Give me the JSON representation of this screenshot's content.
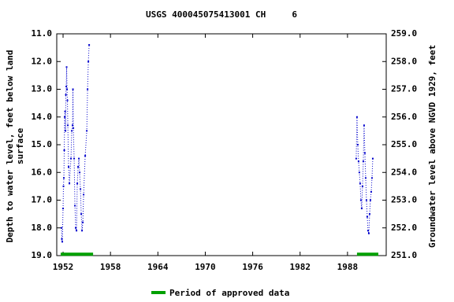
{
  "chart_data": {
    "type": "line",
    "title": "USGS 400045075413001 CH     6",
    "y_label": [
      "Depth to water level, feet below land",
      "surface"
    ],
    "y2_label": "Groundwater level above NGVD 1929, feet",
    "x": [
      1951.8,
      1951.85,
      1951.9,
      1952.0,
      1952.05,
      1952.1,
      1952.15,
      1952.2,
      1952.25,
      1952.3,
      1952.35,
      1952.4,
      1952.45,
      1952.5,
      1952.55,
      1952.6,
      1952.7,
      1952.8,
      1953.0,
      1953.1,
      1953.2,
      1953.25,
      1953.3,
      1953.4,
      1953.5,
      1953.6,
      1953.7,
      1953.8,
      1953.9,
      1954.0,
      1954.1,
      1954.2,
      1954.3,
      1954.4,
      1954.5,
      1954.6,
      1954.8,
      1955.0,
      1955.1,
      1955.2,
      1955.3,
      1970,
      1989.1,
      1989.2,
      1989.3,
      1989.4,
      1989.5,
      1989.6,
      1989.7,
      1989.8,
      1989.9,
      1990.0,
      1990.1,
      1990.2,
      1990.3,
      1990.4,
      1990.5,
      1990.6,
      1990.7,
      1990.8,
      1990.9,
      1991.0,
      1991.1,
      1991.2
    ],
    "series": [
      {
        "color": "#0000cc",
        "values": [
          18.0,
          18.4,
          18.5,
          17.3,
          16.5,
          16.2,
          15.2,
          14.0,
          13.8,
          14.5,
          13.2,
          12.9,
          12.2,
          13.0,
          13.4,
          14.3,
          15.8,
          16.4,
          15.5,
          14.5,
          14.3,
          13.0,
          14.4,
          15.5,
          17.2,
          18.0,
          18.1,
          16.4,
          15.8,
          15.5,
          16.0,
          16.6,
          17.5,
          18.1,
          17.8,
          16.8,
          15.4,
          14.5,
          13.0,
          12.0,
          11.4,
          null,
          15.5,
          14.0,
          15.0,
          15.6,
          16.0,
          16.4,
          17.0,
          17.3,
          16.5,
          15.6,
          14.3,
          15.3,
          16.2,
          17.0,
          17.6,
          18.1,
          18.2,
          17.5,
          17.0,
          16.7,
          16.2,
          15.5
        ]
      }
    ],
    "approved": {
      "name": "Period of approved data",
      "color": "#00a000",
      "periods": [
        [
          1951.7,
          1955.8
        ],
        [
          1989.2,
          1991.9
        ]
      ],
      "depth": 18.95
    },
    "xlim": [
      1951.2,
      1992.9
    ],
    "xticks": [
      1952,
      1958,
      1964,
      1970,
      1976,
      1982,
      1988
    ],
    "ylim": [
      19,
      11
    ],
    "yticks": [
      {
        "value": 11,
        "label": "11.0"
      },
      {
        "value": 12,
        "label": "12.0"
      },
      {
        "value": 13,
        "label": "13.0"
      },
      {
        "value": 14,
        "label": "14.0"
      },
      {
        "value": 15,
        "label": "15.0"
      },
      {
        "value": 16,
        "label": "16.0"
      },
      {
        "value": 17,
        "label": "17.0"
      },
      {
        "value": 18,
        "label": "18.0"
      },
      {
        "value": 19,
        "label": "19.0"
      }
    ],
    "y2lim": [
      251,
      259
    ],
    "y2ticks": [
      {
        "value": 251,
        "label": "251.0"
      },
      {
        "value": 252,
        "label": "252.0"
      },
      {
        "value": 253,
        "label": "253.0"
      },
      {
        "value": 254,
        "label": "254.0"
      },
      {
        "value": 255,
        "label": "255.0"
      },
      {
        "value": 256,
        "label": "256.0"
      },
      {
        "value": 257,
        "label": "257.0"
      },
      {
        "value": 258,
        "label": "258.0"
      },
      {
        "value": 259,
        "label": "259.0"
      }
    ],
    "grid": false
  }
}
